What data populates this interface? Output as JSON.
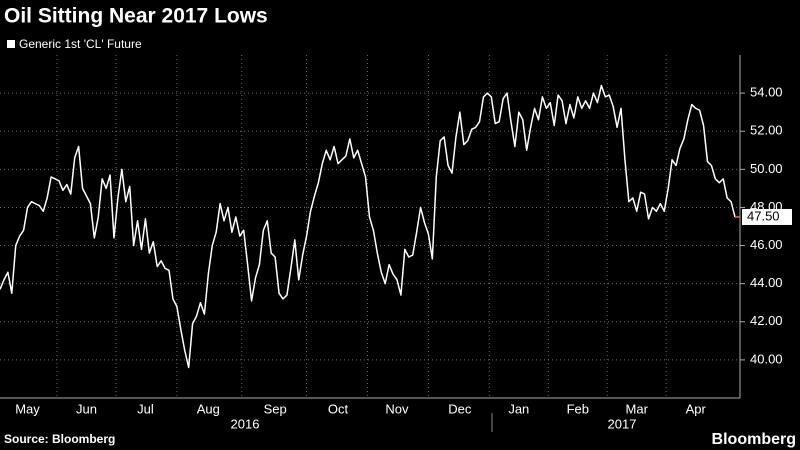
{
  "chart_data": {
    "type": "line",
    "title": "Oil Sitting Near 2017 Lows",
    "source": "Source: Bloomberg",
    "brand": "Bloomberg",
    "categories": [
      null,
      null,
      null,
      null,
      null,
      null,
      null,
      "May",
      null,
      null,
      null,
      null,
      null,
      null,
      null,
      null,
      null,
      null,
      null,
      null,
      null,
      null,
      "Jun",
      null,
      null,
      null,
      null,
      null,
      null,
      null,
      null,
      null,
      null,
      null,
      null,
      null,
      null,
      "Jul",
      null,
      null,
      null,
      null,
      null,
      null,
      null,
      null,
      null,
      null,
      null,
      null,
      null,
      null,
      null,
      "Aug",
      null,
      null,
      null,
      null,
      null,
      null,
      null,
      null,
      null,
      null,
      null,
      null,
      null,
      null,
      null,
      null,
      "Sep",
      null,
      null,
      null,
      null,
      null,
      null,
      null,
      null,
      null,
      null,
      null,
      null,
      null,
      null,
      null,
      "Oct",
      null,
      null,
      null,
      null,
      null,
      null,
      null,
      null,
      null,
      null,
      null,
      null,
      null,
      null,
      "Nov",
      null,
      null,
      null,
      null,
      null,
      null,
      null,
      null,
      null,
      null,
      null,
      null,
      null,
      null,
      null,
      "Dec",
      null,
      null,
      null,
      null,
      null,
      null,
      null,
      null,
      null,
      null,
      null,
      null,
      null,
      null,
      "Jan",
      null,
      null,
      null,
      null,
      null,
      null,
      null,
      null,
      null,
      null,
      null,
      null,
      null,
      null,
      "Feb",
      null,
      null,
      null,
      null,
      null,
      null,
      null,
      null,
      null,
      null,
      null,
      null,
      null,
      null,
      "Mar",
      null,
      null,
      null,
      null,
      null,
      null,
      null,
      null,
      null,
      null,
      null,
      null,
      null,
      null,
      "Apr",
      null,
      null,
      null,
      null,
      null,
      null,
      null,
      null,
      null,
      null
    ],
    "years": [
      "2016",
      "2017"
    ],
    "series": [
      {
        "name": "Generic 1st 'CL' Future",
        "color": "#ffffff",
        "values": [
          43.7,
          44.2,
          44.6,
          43.5,
          46,
          46.5,
          46.8,
          48,
          48.3,
          48.2,
          48.1,
          47.8,
          48.5,
          49.6,
          49.5,
          49.4,
          48.9,
          49.2,
          48.7,
          50.6,
          51.2,
          49,
          48.6,
          48.2,
          46.4,
          47.5,
          49.5,
          49,
          49.7,
          46.4,
          48.5,
          50,
          48.3,
          49.1,
          46,
          47.3,
          45.8,
          47.4,
          45.6,
          46.2,
          44.9,
          45.2,
          44.8,
          44.7,
          43.2,
          42.8,
          41.6,
          40.5,
          39.6,
          41.9,
          42.3,
          43,
          42.4,
          44.5,
          46,
          46.7,
          48.2,
          47.3,
          48,
          46.7,
          47.5,
          46.5,
          46.8,
          45,
          43.1,
          44.3,
          45,
          46.8,
          47.3,
          45.6,
          45.4,
          43.5,
          43.2,
          43.4,
          44.8,
          46.3,
          44.2,
          45.5,
          46.5,
          47.8,
          48.6,
          49.3,
          50.3,
          51,
          50.5,
          51.2,
          50.3,
          50.5,
          50.7,
          51.6,
          50.6,
          51,
          50.3,
          49.6,
          47.5,
          46.8,
          45.6,
          44.6,
          44,
          45,
          44.5,
          44.2,
          43.4,
          45.8,
          45.4,
          45.5,
          46.7,
          48,
          47.2,
          46.6,
          45.3,
          49.6,
          51.5,
          51.7,
          50.2,
          49.8,
          51.7,
          53,
          51.3,
          51.5,
          52.1,
          52.2,
          52.5,
          53.8,
          54,
          53.8,
          52.4,
          52.5,
          53.7,
          54,
          52.5,
          51.2,
          53,
          52.6,
          51,
          52.2,
          53.2,
          52.6,
          53.8,
          53.2,
          53.5,
          52.3,
          53.9,
          53.6,
          52.4,
          53.4,
          52.7,
          53.8,
          53.2,
          53.6,
          53.2,
          54,
          53.5,
          54.4,
          53.8,
          53.9,
          53.3,
          52.2,
          53.2,
          50.5,
          48.3,
          48.5,
          47.8,
          48.8,
          48.7,
          47.4,
          48,
          47.8,
          48.2,
          47.8,
          49,
          50.5,
          50.2,
          51.1,
          51.6,
          52.6,
          53.4,
          53.2,
          53.1,
          52.3,
          50.4,
          50.2,
          49.5,
          49.3,
          49.5,
          48.5,
          48.3,
          47.5
        ]
      }
    ],
    "last_label": {
      "value": 47.5,
      "label": "47.50"
    },
    "tail_color": "#e8743b",
    "ylim": [
      38,
      56
    ],
    "yticks": [
      {
        "value": 40,
        "label": "40.00"
      },
      {
        "value": 42,
        "label": "42.00"
      },
      {
        "value": 44,
        "label": "44.00"
      },
      {
        "value": 46,
        "label": "46.00"
      },
      {
        "value": 48,
        "label": "48.00"
      },
      {
        "value": 50,
        "label": "50.00"
      },
      {
        "value": 52,
        "label": "52.00"
      },
      {
        "value": 54,
        "label": "54.00"
      }
    ],
    "grid": true
  }
}
